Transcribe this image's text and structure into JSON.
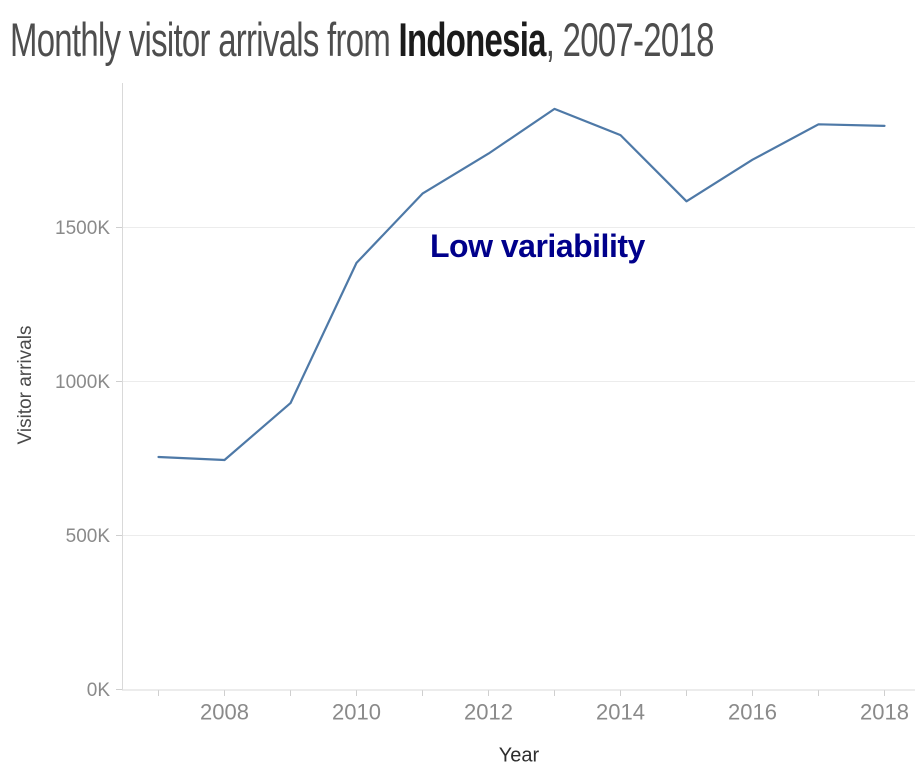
{
  "title": {
    "prefix": "Monthly visitor arrivals from ",
    "highlight": "Indonesia",
    "suffix": ", 2007-2018"
  },
  "annotation": {
    "text": "Low variability",
    "color": "#00008B"
  },
  "y_axis": {
    "title": "Visitor arrivals",
    "ticks": [
      {
        "label": "0K",
        "value": 0
      },
      {
        "label": "500K",
        "value": 500
      },
      {
        "label": "1000K",
        "value": 1000
      },
      {
        "label": "1500K",
        "value": 1500
      }
    ]
  },
  "x_axis": {
    "title": "Year",
    "labeled_ticks": [
      {
        "label": "2008",
        "year": 2008
      },
      {
        "label": "2010",
        "year": 2010
      },
      {
        "label": "2012",
        "year": 2012
      },
      {
        "label": "2014",
        "year": 2014
      },
      {
        "label": "2016",
        "year": 2016
      },
      {
        "label": "2018",
        "year": 2018
      }
    ]
  },
  "chart_data": {
    "type": "line",
    "title": "Monthly visitor arrivals from Indonesia, 2007-2018",
    "xlabel": "Year",
    "ylabel": "Visitor arrivals",
    "x": [
      2007,
      2008,
      2009,
      2010,
      2011,
      2012,
      2013,
      2014,
      2015,
      2016,
      2017,
      2018
    ],
    "values_K": [
      755,
      745,
      930,
      1385,
      1610,
      1740,
      1885,
      1800,
      1585,
      1720,
      1835,
      1830
    ],
    "unit": "thousands of visitors (K)",
    "ylim_K": [
      0,
      1960
    ],
    "y_tick_step_K": 500,
    "x_minor_ticks_every_year": true,
    "grid": "horizontal-light",
    "legend": "none",
    "line_color": "#4e79a7",
    "grid_color": "#ececec",
    "axis_line_color": "#d9d9d9",
    "tick_color": "#cfcfcf",
    "tick_label_color": "#8a8a8a",
    "annotation": "Low variability"
  }
}
